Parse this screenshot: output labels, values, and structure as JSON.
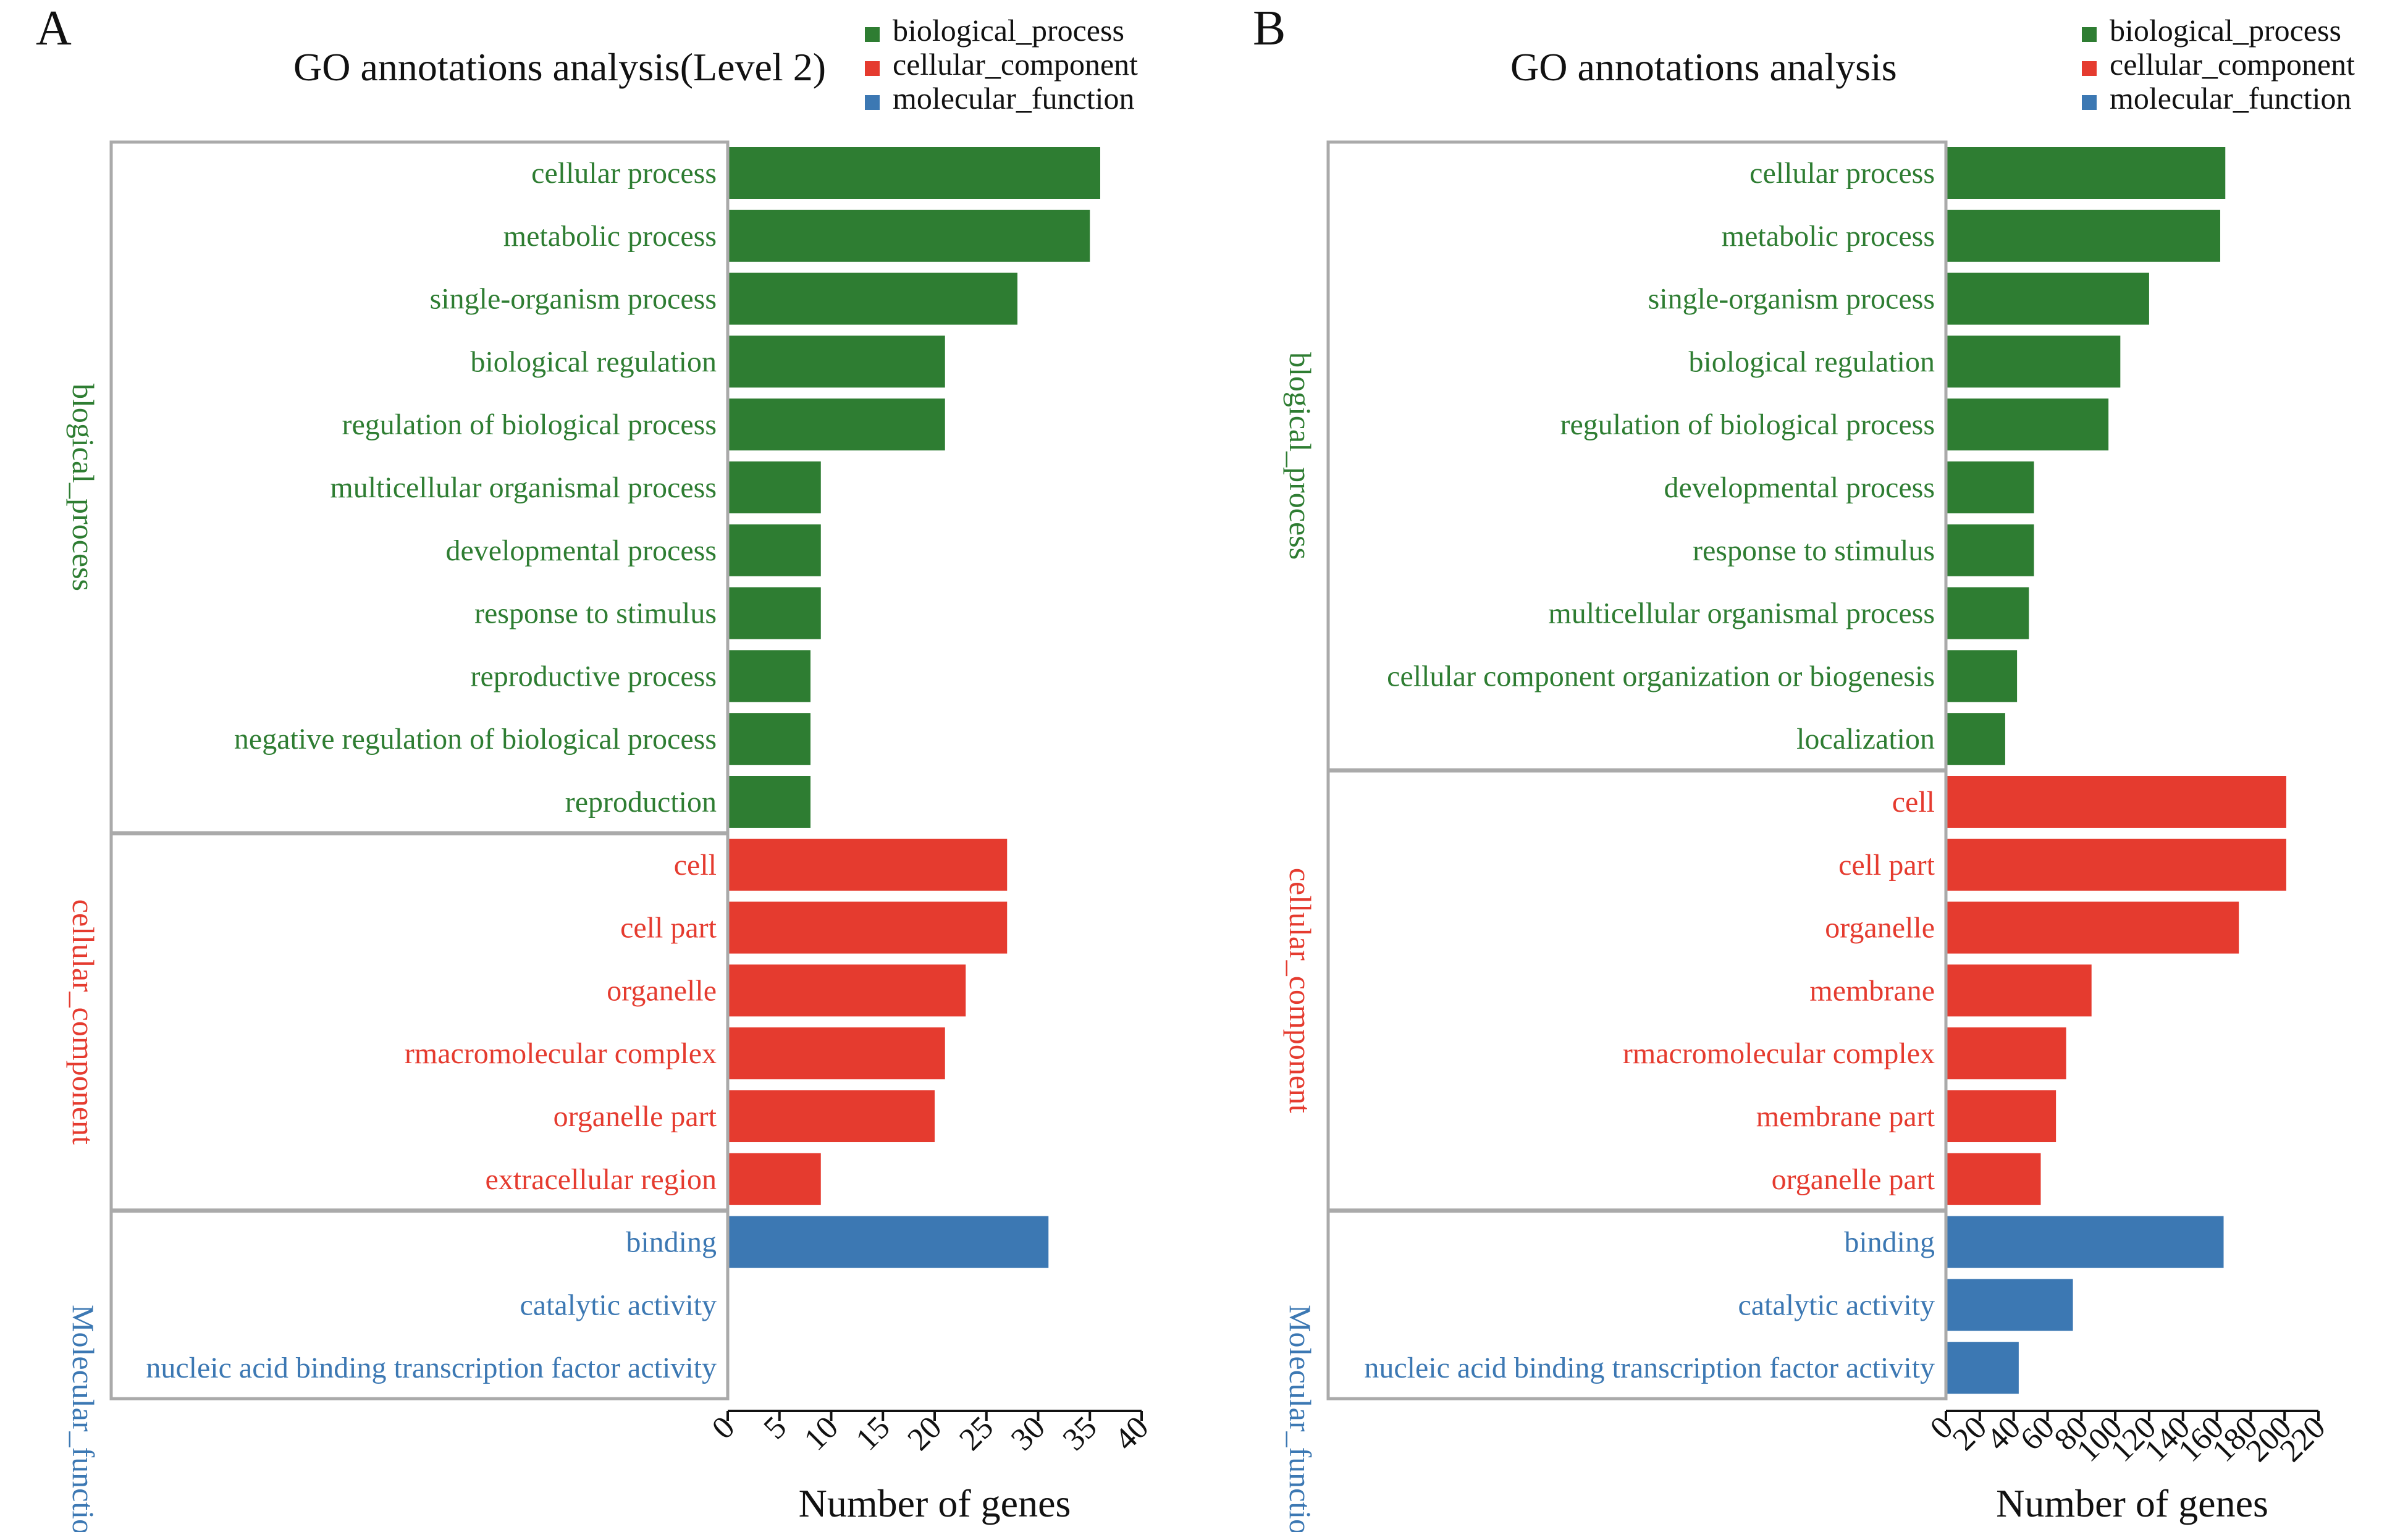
{
  "chart_data": [
    {
      "panel_letter": "A",
      "type": "bar",
      "orientation": "horizontal",
      "title": "GO annotations analysis(Level 2)",
      "xlabel": "Number of genes",
      "xlim": [
        0,
        40
      ],
      "xticks": [
        0,
        5,
        10,
        15,
        20,
        25,
        30,
        35,
        40
      ],
      "legend": [
        {
          "name": "biological_process",
          "color": "#2e7d32"
        },
        {
          "name": "cellular_component",
          "color": "#e53b2f"
        },
        {
          "name": "molecular_function",
          "color": "#3c78b3"
        }
      ],
      "legend_position": "top-right",
      "groups": [
        {
          "name": "blogical_process",
          "color": "#2e7d32",
          "categories": [
            "cellular process",
            "metabolic process",
            "single-organism process",
            "biological regulation",
            "regulation of biological process",
            "multicellular organismal process",
            "developmental process",
            "response to stimulus",
            "reproductive process",
            "negative regulation of biological process",
            "reproduction"
          ],
          "values": [
            36,
            35,
            28,
            21,
            21,
            9,
            9,
            9,
            8,
            8,
            8
          ]
        },
        {
          "name": "cellular_component",
          "color": "#e53b2f",
          "categories": [
            "cell",
            "cell part",
            "organelle",
            "rmacromolecular complex",
            "organelle part",
            "extracellular region"
          ],
          "values": [
            27,
            27,
            23,
            21,
            20,
            9
          ]
        },
        {
          "name": "Molecular_function",
          "color": "#3c78b3",
          "categories": [
            "binding",
            "catalytic activity",
            "nucleic acid binding transcription factor activity"
          ],
          "values": [
            31,
            0,
            0
          ]
        }
      ]
    },
    {
      "panel_letter": "B",
      "type": "bar",
      "orientation": "horizontal",
      "title": "GO annotations analysis",
      "xlabel": "Number of genes",
      "xlim": [
        0,
        220
      ],
      "xticks": [
        0,
        20,
        40,
        60,
        80,
        100,
        120,
        140,
        160,
        180,
        200,
        220
      ],
      "legend": [
        {
          "name": "biological_process",
          "color": "#2e7d32"
        },
        {
          "name": "cellular_component",
          "color": "#e53b2f"
        },
        {
          "name": "molecular_function",
          "color": "#3c78b3"
        }
      ],
      "legend_position": "top-right",
      "groups": [
        {
          "name": "blogical_process",
          "color": "#2e7d32",
          "categories": [
            "cellular process",
            "metabolic process",
            "single-organism process",
            "biological regulation",
            "regulation of biological process",
            "developmental process",
            "response to stimulus",
            "multicellular organismal process",
            "cellular component organization or biogenesis",
            "localization"
          ],
          "values": [
            165,
            162,
            120,
            103,
            96,
            52,
            52,
            49,
            42,
            35
          ]
        },
        {
          "name": "cellular_component",
          "color": "#e53b2f",
          "categories": [
            "cell",
            "cell part",
            "organelle",
            "membrane",
            "rmacromolecular complex",
            "membrane part",
            "organelle part"
          ],
          "values": [
            201,
            201,
            173,
            86,
            71,
            65,
            56
          ]
        },
        {
          "name": "Molecular_function",
          "color": "#3c78b3",
          "categories": [
            "binding",
            "catalytic activity",
            "nucleic acid binding transcription factor activity"
          ],
          "values": [
            164,
            75,
            43
          ]
        }
      ]
    }
  ]
}
